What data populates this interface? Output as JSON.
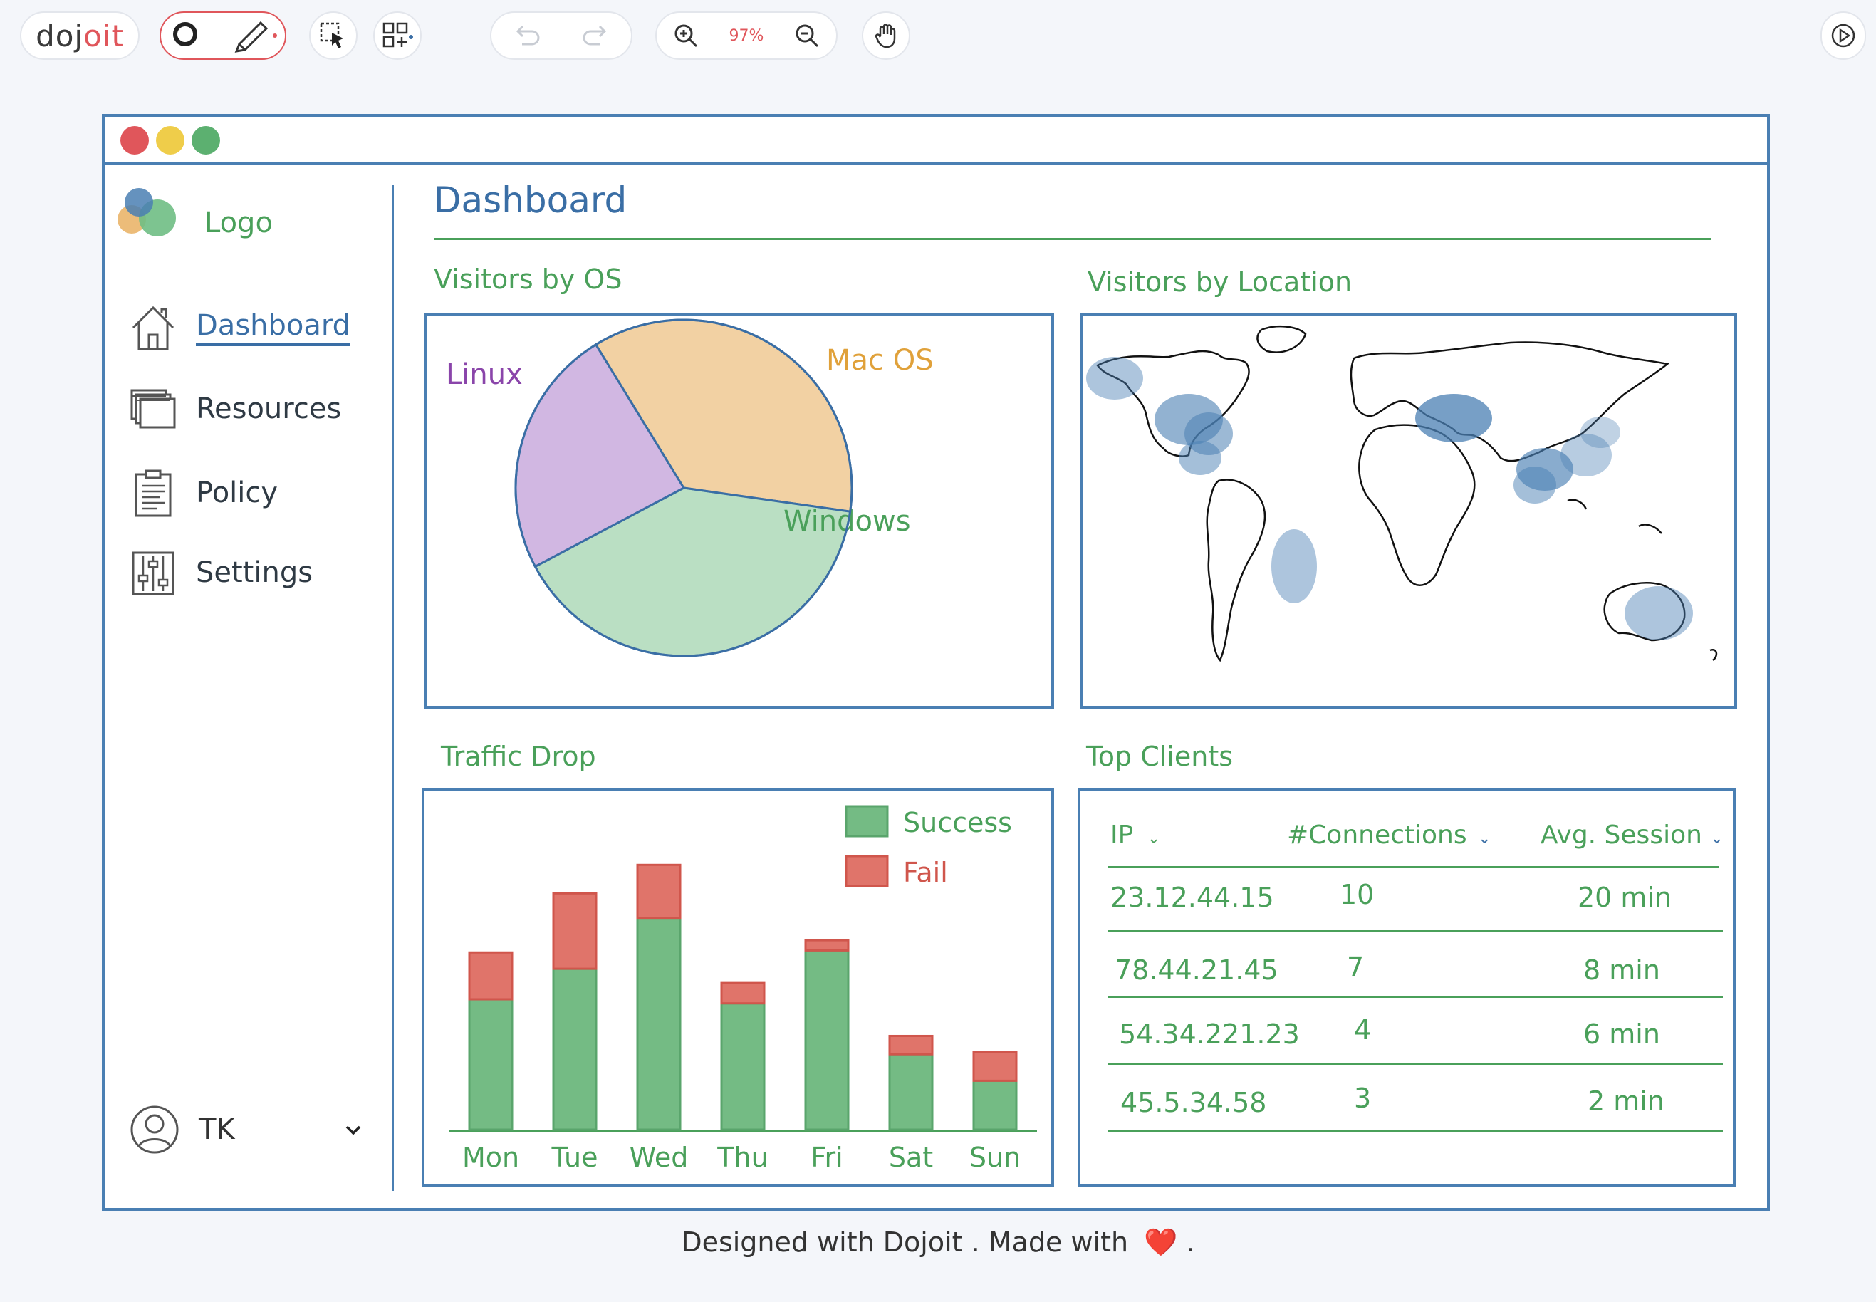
{
  "toolbar": {
    "brand_do": "doj",
    "brand_it": "oit",
    "zoom_level": "97%"
  },
  "sidebar": {
    "logo_label": "Logo",
    "items": [
      {
        "label": "Dashboard",
        "icon": "home-icon",
        "active": true
      },
      {
        "label": "Resources",
        "icon": "resources-icon",
        "active": false
      },
      {
        "label": "Policy",
        "icon": "clipboard-icon",
        "active": false
      },
      {
        "label": "Settings",
        "icon": "sliders-icon",
        "active": false
      }
    ],
    "user_initials": "TK"
  },
  "main": {
    "page_title": "Dashboard",
    "os_title": "Visitors by OS",
    "location_title": "Visitors by Location",
    "traffic_title": "Traffic Drop",
    "clients_title": "Top Clients"
  },
  "pie_chart": {
    "type": "pie",
    "slices": [
      {
        "label": "Mac OS",
        "share": 0.36,
        "color": "#eab56a"
      },
      {
        "label": "Windows",
        "share": 0.4,
        "color": "#8fcc9e"
      },
      {
        "label": "Linux",
        "share": 0.24,
        "color": "#b58ad0"
      }
    ]
  },
  "chart_data": {
    "type": "bar",
    "categories": [
      "Mon",
      "Tue",
      "Wed",
      "Thu",
      "Fri",
      "Sat",
      "Sun"
    ],
    "series": [
      {
        "name": "Success",
        "values": [
          64,
          79,
          104,
          62,
          88,
          37,
          24
        ],
        "color": "#74bb84"
      },
      {
        "name": "Fail",
        "values": [
          23,
          37,
          26,
          10,
          5,
          9,
          14
        ],
        "color": "#e0746a"
      }
    ],
    "ylim": [
      0,
      135
    ],
    "legend": "top-right"
  },
  "clients": {
    "headers": [
      "IP",
      "#Connections",
      "Avg. Session"
    ],
    "rows": [
      {
        "ip": "23.12.44.15",
        "connections": "10",
        "session": "20 min"
      },
      {
        "ip": "78.44.21.45",
        "connections": "7",
        "session": "8 min"
      },
      {
        "ip": "54.34.221.23",
        "connections": "4",
        "session": "6 min"
      },
      {
        "ip": "45.5.34.58",
        "connections": "3",
        "session": "2 min"
      }
    ]
  },
  "footer": {
    "text": "Designed with Dojoit . Made with",
    "heart": "❤️",
    "end": "."
  },
  "colors": {
    "accent_blue": "#3a6ea5",
    "accent_green": "#4aa05a",
    "close": "#e0565b",
    "minimize": "#efcd4a",
    "maximize": "#5cb070"
  }
}
